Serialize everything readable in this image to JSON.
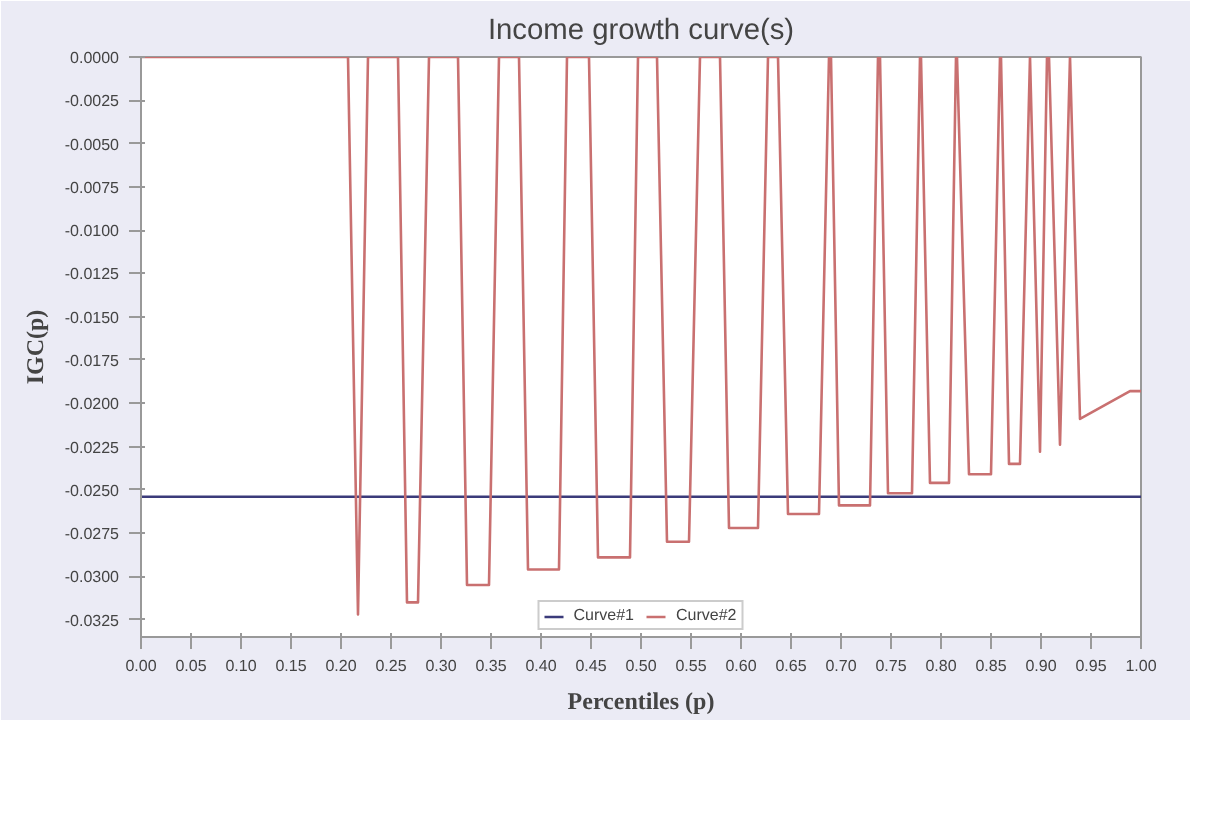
{
  "chart_data": {
    "type": "line",
    "title": "Income growth curve(s)",
    "xlabel": "Percentiles (p)",
    "ylabel": "IGC(p)",
    "xlim": [
      0,
      1
    ],
    "ylim": [
      -0.0335,
      0
    ],
    "xticks": [
      {
        "value": 0,
        "label": "0.00"
      },
      {
        "value": 0.05,
        "label": "0.05"
      },
      {
        "value": 0.1,
        "label": "0.10"
      },
      {
        "value": 0.15,
        "label": "0.15"
      },
      {
        "value": 0.2,
        "label": "0.20"
      },
      {
        "value": 0.25,
        "label": "0.25"
      },
      {
        "value": 0.3,
        "label": "0.30"
      },
      {
        "value": 0.35,
        "label": "0.35"
      },
      {
        "value": 0.4,
        "label": "0.40"
      },
      {
        "value": 0.45,
        "label": "0.45"
      },
      {
        "value": 0.5,
        "label": "0.50"
      },
      {
        "value": 0.55,
        "label": "0.55"
      },
      {
        "value": 0.6,
        "label": "0.60"
      },
      {
        "value": 0.65,
        "label": "0.65"
      },
      {
        "value": 0.7,
        "label": "0.70"
      },
      {
        "value": 0.75,
        "label": "0.75"
      },
      {
        "value": 0.8,
        "label": "0.80"
      },
      {
        "value": 0.85,
        "label": "0.85"
      },
      {
        "value": 0.9,
        "label": "0.90"
      },
      {
        "value": 0.95,
        "label": "0.95"
      },
      {
        "value": 1,
        "label": "1.00"
      }
    ],
    "yticks": [
      {
        "value": 0,
        "label": "0.0000"
      },
      {
        "value": -0.0025,
        "label": "-0.0025"
      },
      {
        "value": -0.005,
        "label": "-0.0050"
      },
      {
        "value": -0.0075,
        "label": "-0.0075"
      },
      {
        "value": -0.01,
        "label": "-0.0100"
      },
      {
        "value": -0.0125,
        "label": "-0.0125"
      },
      {
        "value": -0.015,
        "label": "-0.0150"
      },
      {
        "value": -0.0175,
        "label": "-0.0175"
      },
      {
        "value": -0.02,
        "label": "-0.0200"
      },
      {
        "value": -0.0225,
        "label": "-0.0225"
      },
      {
        "value": -0.025,
        "label": "-0.0250"
      },
      {
        "value": -0.0275,
        "label": "-0.0275"
      },
      {
        "value": -0.03,
        "label": "-0.0300"
      },
      {
        "value": -0.0325,
        "label": "-0.0325"
      }
    ],
    "grid": false,
    "legend": "bottom",
    "marker": "none",
    "line_style": "solid",
    "series": [
      {
        "name": "Curve#1",
        "color": "#3b3b7a",
        "x": [
          0,
          1
        ],
        "values": [
          -0.0254,
          -0.0254
        ]
      },
      {
        "name": "Curve#2",
        "color": "#c97070",
        "x": [
          0,
          0.207,
          0.217,
          0.227,
          0.257,
          0.266,
          0.277,
          0.288,
          0.317,
          0.326,
          0.348,
          0.358,
          0.378,
          0.387,
          0.418,
          0.426,
          0.448,
          0.457,
          0.489,
          0.497,
          0.516,
          0.526,
          0.548,
          0.559,
          0.579,
          0.588,
          0.617,
          0.627,
          0.637,
          0.647,
          0.678,
          0.688,
          0.69,
          0.698,
          0.729,
          0.737,
          0.739,
          0.747,
          0.771,
          0.779,
          0.78,
          0.789,
          0.808,
          0.815,
          0.816,
          0.828,
          0.85,
          0.859,
          0.86,
          0.868,
          0.879,
          0.889,
          0.899,
          0.906,
          0.908,
          0.919,
          0.929,
          0.939,
          0.989,
          1
        ],
        "values": [
          0,
          0,
          -0.0322,
          0,
          0,
          -0.0315,
          -0.0315,
          0,
          0,
          -0.0305,
          -0.0305,
          0,
          0,
          -0.0296,
          -0.0296,
          0,
          0,
          -0.0289,
          -0.0289,
          0,
          0,
          -0.028,
          -0.028,
          0,
          0,
          -0.0272,
          -0.0272,
          0,
          0,
          -0.0264,
          -0.0264,
          0,
          0,
          -0.0259,
          -0.0259,
          0,
          0,
          -0.0252,
          -0.0252,
          0,
          0,
          -0.0246,
          -0.0246,
          0,
          0,
          -0.0241,
          -0.0241,
          0,
          0,
          -0.0235,
          -0.0235,
          0,
          -0.0228,
          0,
          0,
          -0.0224,
          0,
          -0.0209,
          -0.0193,
          -0.0193
        ]
      }
    ]
  }
}
